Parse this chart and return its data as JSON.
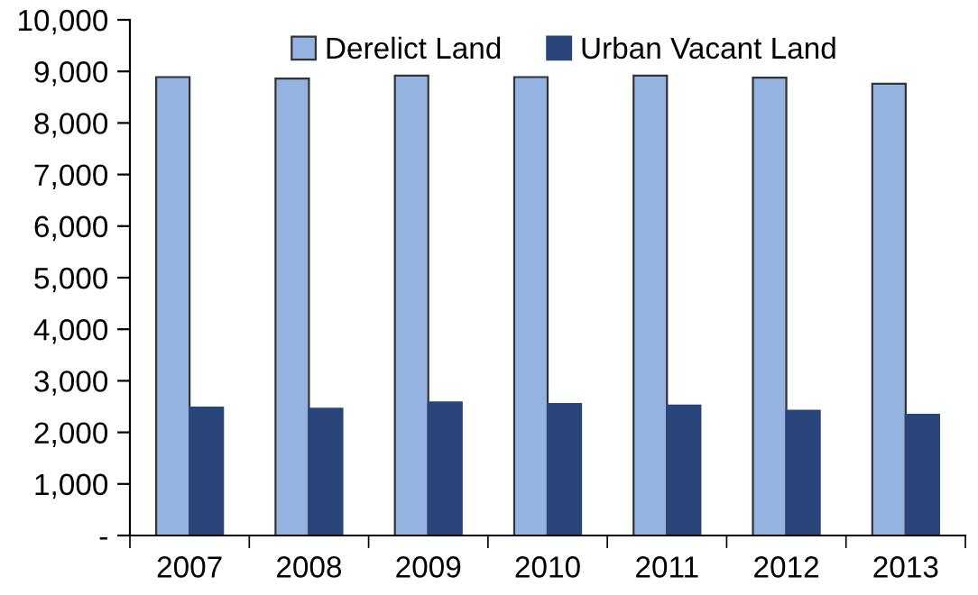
{
  "chart_data": {
    "type": "bar",
    "categories": [
      "2007",
      "2008",
      "2009",
      "2010",
      "2011",
      "2012",
      "2013"
    ],
    "series": [
      {
        "name": "Derelict Land",
        "color": "#95b3e0",
        "values": [
          8890,
          8860,
          8920,
          8890,
          8920,
          8880,
          8760
        ]
      },
      {
        "name": "Urban Vacant Land",
        "color": "#2a457a",
        "values": [
          2480,
          2460,
          2580,
          2550,
          2520,
          2420,
          2340
        ]
      }
    ],
    "ylim": [
      0,
      10000
    ],
    "yticks": [
      {
        "value": 0,
        "label": "-"
      },
      {
        "value": 1000,
        "label": "1,000"
      },
      {
        "value": 2000,
        "label": "2,000"
      },
      {
        "value": 3000,
        "label": "3,000"
      },
      {
        "value": 4000,
        "label": "4,000"
      },
      {
        "value": 5000,
        "label": "5,000"
      },
      {
        "value": 6000,
        "label": "6,000"
      },
      {
        "value": 7000,
        "label": "7,000"
      },
      {
        "value": 8000,
        "label": "8,000"
      },
      {
        "value": 9000,
        "label": "9,000"
      },
      {
        "value": 10000,
        "label": "10,000"
      }
    ],
    "grid": false,
    "legend": "top"
  }
}
